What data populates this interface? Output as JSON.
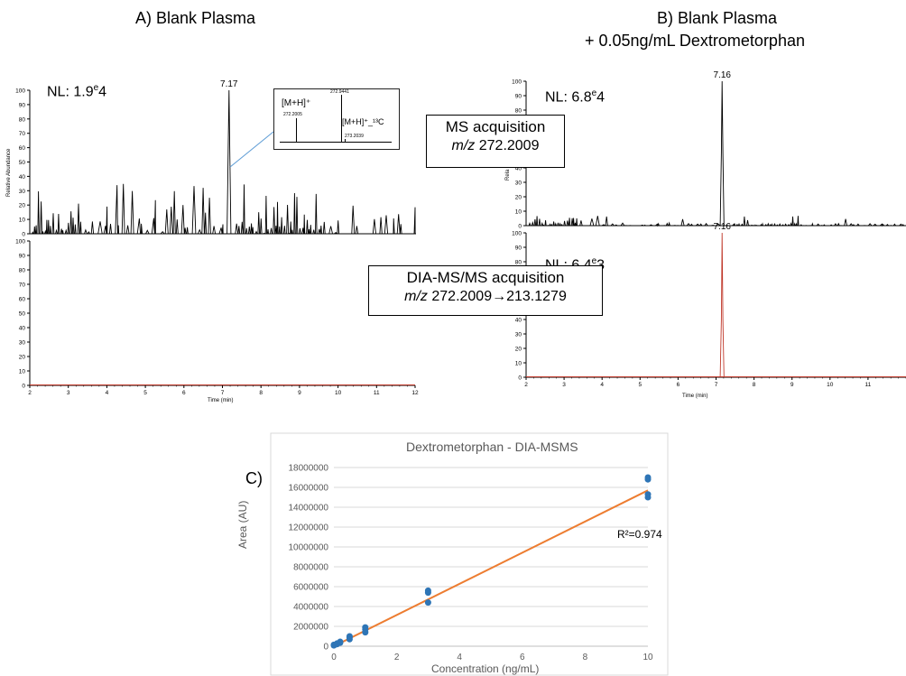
{
  "panelA": {
    "title": "A) Blank Plasma",
    "nl_top": "NL: 1.9",
    "nl_top_exp": "e",
    "nl_top_tail": "4",
    "peak_label": "7.17",
    "ylabel": "Relative Abundance",
    "xlabel": "Time (min)",
    "inset": {
      "peak_label": "272.9441",
      "mh_label": "[M+H]⁺",
      "mh_mz": "272.2005",
      "c13_label": "[M+H]⁺_¹³C",
      "c13_mz": "273.2039"
    }
  },
  "panelB": {
    "title_line1": "B) Blank Plasma",
    "title_line2": "+ 0.05ng/mL Dextrometorphan",
    "nl_top": "NL: 6.8",
    "nl_top_exp": "e",
    "nl_top_tail": "4",
    "nl_bottom": "NL: 6.4",
    "nl_bottom_exp": "e",
    "nl_bottom_tail": "3",
    "peak_label_top": "7.16",
    "peak_label_bottom": "7.16",
    "ylabel": "Relative Abundance",
    "xlabel": "Time (min)"
  },
  "boxes": {
    "ms": {
      "line1": "MS acquisition",
      "mz": "m/z",
      "line2": " 272.2009"
    },
    "dia": {
      "line1": "DIA-MS/MS acquisition",
      "mz": "m/z",
      "line2": " 272.2009",
      "arrow": "→",
      "line2b": "213.1279"
    }
  },
  "panelC": {
    "label": "C)"
  },
  "chart_data": [
    {
      "type": "line",
      "name": "A-top",
      "xlim": [
        2,
        12
      ],
      "ylim": [
        0,
        100
      ],
      "x_ticks": [
        2,
        3,
        4,
        5,
        6,
        7,
        8,
        9,
        10,
        11,
        12
      ],
      "y_ticks": [
        0,
        10,
        20,
        30,
        40,
        50,
        60,
        70,
        80,
        90,
        100
      ],
      "peak": {
        "x": 7.17,
        "y": 100
      }
    },
    {
      "type": "line",
      "name": "A-bottom",
      "xlim": [
        2,
        12
      ],
      "ylim": [
        0,
        100
      ],
      "x_ticks": [
        2,
        3,
        4,
        5,
        6,
        7,
        8,
        9,
        10,
        11,
        12
      ],
      "y_ticks": [
        0,
        10,
        20,
        30,
        40,
        50,
        60,
        70,
        80,
        90,
        100
      ]
    },
    {
      "type": "line",
      "name": "B-top",
      "xlim": [
        2,
        12
      ],
      "ylim": [
        0,
        100
      ],
      "y_ticks": [
        0,
        10,
        20,
        30,
        40,
        50,
        60,
        70,
        80,
        90,
        100
      ],
      "peak": {
        "x": 7.16,
        "y": 100
      }
    },
    {
      "type": "line",
      "name": "B-bottom",
      "xlim": [
        2,
        12
      ],
      "ylim": [
        0,
        100
      ],
      "x_ticks": [
        2,
        3,
        4,
        5,
        6,
        7,
        8,
        9,
        10,
        11
      ],
      "y_ticks": [
        0,
        10,
        20,
        30,
        40,
        50,
        60,
        70,
        80,
        90,
        100
      ],
      "peak": {
        "x": 7.16,
        "y": 100
      }
    },
    {
      "type": "scatter",
      "title": "Dextrometorphan - DIA-MSMS",
      "xlabel": "Concentration (ng/mL)",
      "ylabel": "Area (AU)",
      "xlim": [
        0,
        10
      ],
      "ylim": [
        0,
        18000000
      ],
      "x_ticks": [
        0,
        2,
        4,
        6,
        8,
        10
      ],
      "y_ticks": [
        0,
        2000000,
        4000000,
        6000000,
        8000000,
        10000000,
        12000000,
        14000000,
        16000000,
        18000000
      ],
      "points": [
        [
          0,
          80000
        ],
        [
          0,
          150000
        ],
        [
          0.1,
          200000
        ],
        [
          0.1,
          280000
        ],
        [
          0.2,
          350000
        ],
        [
          0.2,
          450000
        ],
        [
          0.5,
          700000
        ],
        [
          0.5,
          900000
        ],
        [
          0.5,
          1000000
        ],
        [
          1,
          1400000
        ],
        [
          1,
          1700000
        ],
        [
          1,
          1900000
        ],
        [
          3,
          4400000
        ],
        [
          3,
          5400000
        ],
        [
          3,
          5600000
        ],
        [
          10,
          15000000
        ],
        [
          10,
          15300000
        ],
        [
          10,
          16800000
        ],
        [
          10,
          17000000
        ]
      ],
      "fit": {
        "x": [
          0,
          10
        ],
        "y": [
          0,
          15700000
        ]
      },
      "annotation": "R²=0.974",
      "colors": {
        "points": "#2e75b6",
        "fit": "#ed7d31"
      }
    }
  ]
}
